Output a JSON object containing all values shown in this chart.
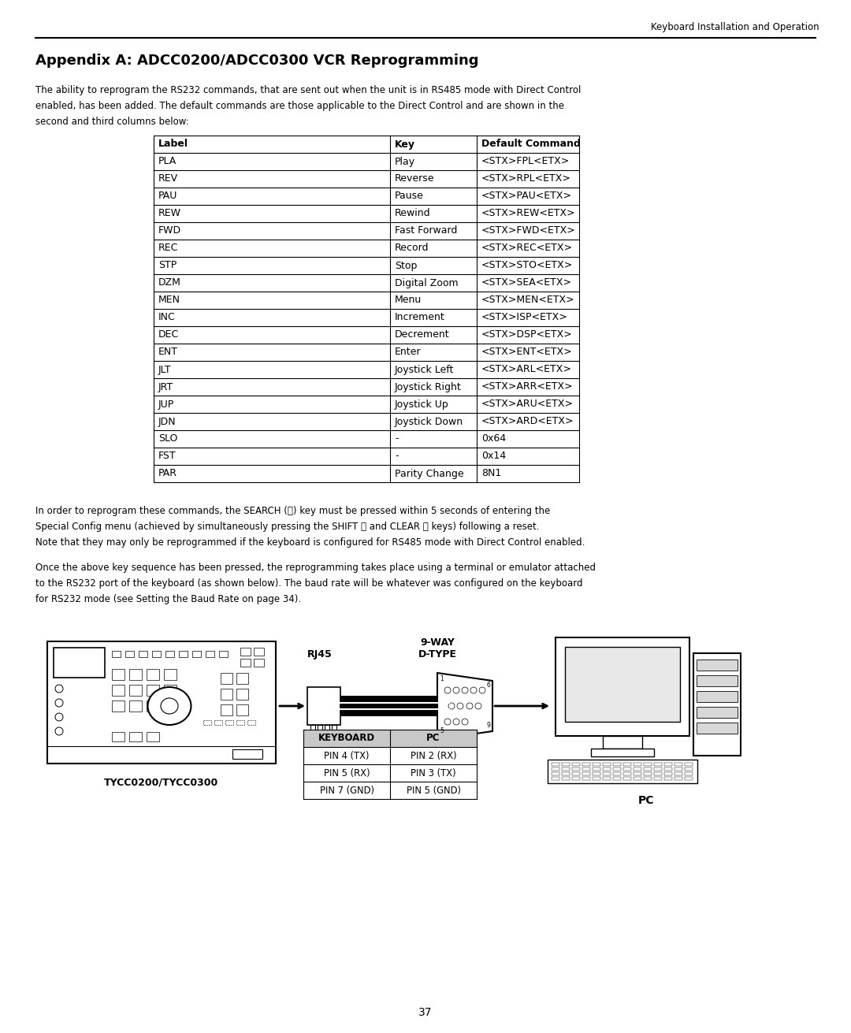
{
  "page_title": "Keyboard Installation and Operation",
  "section_title": "Appendix A: ADCC0200/ADCC0300 VCR Reprogramming",
  "intro_text": "The ability to reprogram the RS232 commands, that are sent out when the unit is in RS485 mode with Direct Control\nenabled, has been added. The default commands are those applicable to the Direct Control and are shown in the\nsecond and third columns below:",
  "table_headers": [
    "Label",
    "Key",
    "Default Command"
  ],
  "table_rows": [
    [
      "PLA",
      "Play",
      "<STX>FPL<ETX>"
    ],
    [
      "REV",
      "Reverse",
      "<STX>RPL<ETX>"
    ],
    [
      "PAU",
      "Pause",
      "<STX>PAU<ETX>"
    ],
    [
      "REW",
      "Rewind",
      "<STX>REW<ETX>"
    ],
    [
      "FWD",
      "Fast Forward",
      "<STX>FWD<ETX>"
    ],
    [
      "REC",
      "Record",
      "<STX>REC<ETX>"
    ],
    [
      "STP",
      "Stop",
      "<STX>STO<ETX>"
    ],
    [
      "DZM",
      "Digital Zoom",
      "<STX>SEA<ETX>"
    ],
    [
      "MEN",
      "Menu",
      "<STX>MEN<ETX>"
    ],
    [
      "INC",
      "Increment",
      "<STX>ISP<ETX>"
    ],
    [
      "DEC",
      "Decrement",
      "<STX>DSP<ETX>"
    ],
    [
      "ENT",
      "Enter",
      "<STX>ENT<ETX>"
    ],
    [
      "JLT",
      "Joystick Left",
      "<STX>ARL<ETX>"
    ],
    [
      "JRT",
      "Joystick Right",
      "<STX>ARR<ETX>"
    ],
    [
      "JUP",
      "Joystick Up",
      "<STX>ARU<ETX>"
    ],
    [
      "JDN",
      "Joystick Down",
      "<STX>ARD<ETX>"
    ],
    [
      "SLO",
      "-",
      "0x64"
    ],
    [
      "FST",
      "-",
      "0x14"
    ],
    [
      "PAR",
      "Parity Change",
      "8N1"
    ]
  ],
  "para2_line1": "In order to reprogram these commands, the SEARCH (Ⓢ) key must be pressed within 5 seconds of entering the",
  "para2_line2": "Special Config menu (achieved by simultaneously pressing the SHIFT ⓐ and CLEAR ⓔ keys) following a reset.",
  "para2_line3": "Note that they may only be reprogrammed if the keyboard is configured for RS485 mode with Direct Control enabled.",
  "para3_line1": "Once the above key sequence has been pressed, the reprogramming takes place using a terminal or emulator attached",
  "para3_line2": "to the RS232 port of the keyboard (as shown below). The baud rate will be whatever was configured on the keyboard",
  "para3_line3": "for RS232 mode (see Setting the Baud Rate on page 34).",
  "diagram_label_keyboard": "TYCC0200/TYCC0300",
  "diagram_label_rj45": "RJ45",
  "diagram_label_dtype": "9-WAY\nD-TYPE",
  "diagram_label_pc": "PC",
  "pin_table_headers": [
    "KEYBOARD",
    "PC"
  ],
  "pin_table_rows": [
    [
      "PIN 4 (TX)",
      "PIN 2 (RX)"
    ],
    [
      "PIN 5 (RX)",
      "PIN 3 (TX)"
    ],
    [
      "PIN 7 (GND)",
      "PIN 5 (GND)"
    ]
  ],
  "page_number": "37",
  "bg_color": "#ffffff",
  "text_color": "#000000",
  "header_gray": "#c8c8c8"
}
